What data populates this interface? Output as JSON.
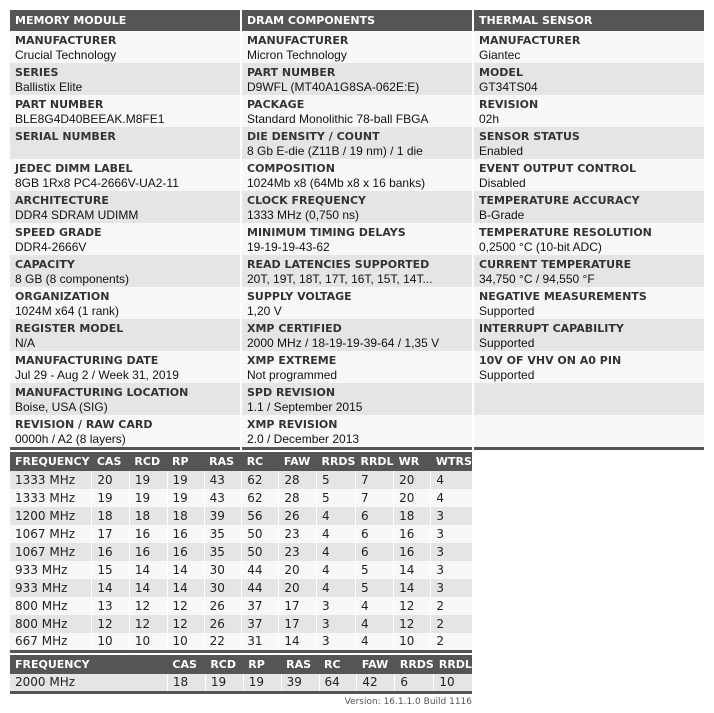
{
  "columns": [
    {
      "title": "MEMORY MODULE",
      "items": [
        {
          "label": "MANUFACTURER",
          "value": "Crucial Technology"
        },
        {
          "label": "SERIES",
          "value": "Ballistix Elite"
        },
        {
          "label": "PART NUMBER",
          "value": "BLE8G4D40BEEAK.M8FE1"
        },
        {
          "label": "SERIAL NUMBER",
          "value": ""
        },
        {
          "label": "JEDEC DIMM LABEL",
          "value": "8GB 1Rx8 PC4-2666V-UA2-11"
        },
        {
          "label": "ARCHITECTURE",
          "value": "DDR4 SDRAM UDIMM"
        },
        {
          "label": "SPEED GRADE",
          "value": "DDR4-2666V"
        },
        {
          "label": "CAPACITY",
          "value": "8 GB (8 components)"
        },
        {
          "label": "ORGANIZATION",
          "value": "1024M x64 (1 rank)"
        },
        {
          "label": "REGISTER MODEL",
          "value": "N/A"
        },
        {
          "label": "MANUFACTURING DATE",
          "value": "Jul 29 - Aug 2 / Week 31, 2019"
        },
        {
          "label": "MANUFACTURING LOCATION",
          "value": "Boise, USA (SIG)"
        },
        {
          "label": "REVISION / RAW CARD",
          "value": "0000h / A2 (8 layers)"
        }
      ]
    },
    {
      "title": "DRAM COMPONENTS",
      "items": [
        {
          "label": "MANUFACTURER",
          "value": "Micron Technology"
        },
        {
          "label": "PART NUMBER",
          "value": "D9WFL (MT40A1G8SA-062E:E)"
        },
        {
          "label": "PACKAGE",
          "value": "Standard Monolithic 78-ball FBGA"
        },
        {
          "label": "DIE DENSITY / COUNT",
          "value": "8 Gb E-die (Z11B / 19 nm) / 1 die"
        },
        {
          "label": "COMPOSITION",
          "value": "1024Mb x8 (64Mb x8 x 16 banks)"
        },
        {
          "label": "CLOCK FREQUENCY",
          "value": "1333 MHz (0,750 ns)"
        },
        {
          "label": "MINIMUM TIMING DELAYS",
          "value": "19-19-19-43-62"
        },
        {
          "label": "READ LATENCIES SUPPORTED",
          "value": "20T, 19T, 18T, 17T, 16T, 15T, 14T..."
        },
        {
          "label": "SUPPLY VOLTAGE",
          "value": "1,20 V"
        },
        {
          "label": "XMP CERTIFIED",
          "value": "2000 MHz / 18-19-19-39-64 / 1,35 V"
        },
        {
          "label": "XMP EXTREME",
          "value": "Not programmed"
        },
        {
          "label": "SPD REVISION",
          "value": "1.1 / September 2015"
        },
        {
          "label": "XMP REVISION",
          "value": "2.0 / December 2013"
        }
      ]
    },
    {
      "title": "THERMAL SENSOR",
      "items": [
        {
          "label": "MANUFACTURER",
          "value": "Giantec"
        },
        {
          "label": "MODEL",
          "value": "GT34TS04"
        },
        {
          "label": "REVISION",
          "value": "02h"
        },
        {
          "label": "SENSOR STATUS",
          "value": "Enabled"
        },
        {
          "label": "EVENT OUTPUT CONTROL",
          "value": "Disabled"
        },
        {
          "label": "TEMPERATURE ACCURACY",
          "value": "B-Grade"
        },
        {
          "label": "TEMPERATURE RESOLUTION",
          "value": "0,2500 °C (10-bit ADC)"
        },
        {
          "label": "CURRENT TEMPERATURE",
          "value": "34,750 °C / 94,550 °F"
        },
        {
          "label": "NEGATIVE MEASUREMENTS",
          "value": "Supported"
        },
        {
          "label": "INTERRUPT CAPABILITY",
          "value": "Supported"
        },
        {
          "label": "10V OF VHV ON A0 PIN",
          "value": "Supported"
        },
        {
          "label": "",
          "value": ""
        },
        {
          "label": "",
          "value": ""
        }
      ]
    }
  ],
  "jedec_table": {
    "headers": [
      "FREQUENCY",
      "CAS",
      "RCD",
      "RP",
      "RAS",
      "RC",
      "FAW",
      "RRDS",
      "RRDL",
      "WR",
      "WTRS"
    ],
    "rows": [
      [
        "1333 MHz",
        "20",
        "19",
        "19",
        "43",
        "62",
        "28",
        "5",
        "7",
        "20",
        "4"
      ],
      [
        "1333 MHz",
        "19",
        "19",
        "19",
        "43",
        "62",
        "28",
        "5",
        "7",
        "20",
        "4"
      ],
      [
        "1200 MHz",
        "18",
        "18",
        "18",
        "39",
        "56",
        "26",
        "4",
        "6",
        "18",
        "3"
      ],
      [
        "1067 MHz",
        "17",
        "16",
        "16",
        "35",
        "50",
        "23",
        "4",
        "6",
        "16",
        "3"
      ],
      [
        "1067 MHz",
        "16",
        "16",
        "16",
        "35",
        "50",
        "23",
        "4",
        "6",
        "16",
        "3"
      ],
      [
        "933 MHz",
        "15",
        "14",
        "14",
        "30",
        "44",
        "20",
        "4",
        "5",
        "14",
        "3"
      ],
      [
        "933 MHz",
        "14",
        "14",
        "14",
        "30",
        "44",
        "20",
        "4",
        "5",
        "14",
        "3"
      ],
      [
        "800 MHz",
        "13",
        "12",
        "12",
        "26",
        "37",
        "17",
        "3",
        "4",
        "12",
        "2"
      ],
      [
        "800 MHz",
        "12",
        "12",
        "12",
        "26",
        "37",
        "17",
        "3",
        "4",
        "12",
        "2"
      ],
      [
        "667 MHz",
        "10",
        "10",
        "10",
        "22",
        "31",
        "14",
        "3",
        "4",
        "10",
        "2"
      ]
    ]
  },
  "xmp_table": {
    "headers": [
      "FREQUENCY",
      "CAS",
      "RCD",
      "RP",
      "RAS",
      "RC",
      "FAW",
      "RRDS",
      "RRDL"
    ],
    "rows": [
      [
        "2000 MHz",
        "18",
        "19",
        "19",
        "39",
        "64",
        "42",
        "6",
        "10"
      ]
    ]
  },
  "version": "Version: 16.1.1.0 Build 1116"
}
